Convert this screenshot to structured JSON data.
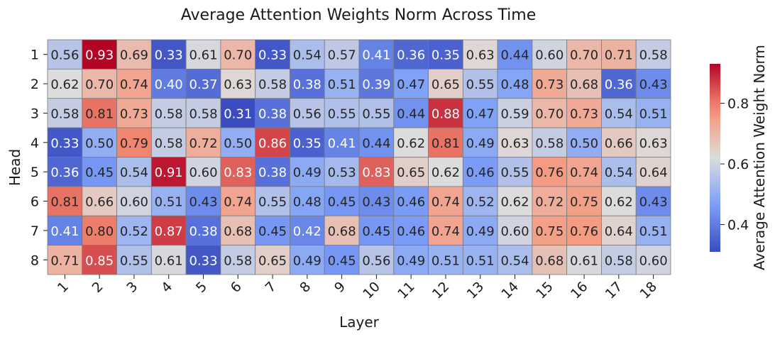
{
  "chart_data": {
    "type": "heatmap",
    "title": "Average Attention Weights Norm Across Time",
    "xlabel": "Layer",
    "ylabel": "Head",
    "x_categories": [
      "1",
      "2",
      "3",
      "4",
      "5",
      "6",
      "7",
      "8",
      "9",
      "10",
      "11",
      "12",
      "13",
      "14",
      "15",
      "16",
      "17",
      "18"
    ],
    "y_categories": [
      "1",
      "2",
      "3",
      "4",
      "5",
      "6",
      "7",
      "8"
    ],
    "values": [
      [
        0.56,
        0.93,
        0.69,
        0.33,
        0.61,
        0.7,
        0.33,
        0.54,
        0.57,
        0.41,
        0.36,
        0.35,
        0.63,
        0.44,
        0.6,
        0.7,
        0.71,
        0.58
      ],
      [
        0.62,
        0.7,
        0.74,
        0.4,
        0.37,
        0.63,
        0.58,
        0.38,
        0.51,
        0.39,
        0.47,
        0.65,
        0.55,
        0.48,
        0.73,
        0.68,
        0.36,
        0.43
      ],
      [
        0.58,
        0.81,
        0.73,
        0.58,
        0.58,
        0.31,
        0.38,
        0.56,
        0.55,
        0.55,
        0.44,
        0.88,
        0.47,
        0.59,
        0.7,
        0.73,
        0.54,
        0.51
      ],
      [
        0.33,
        0.5,
        0.79,
        0.58,
        0.72,
        0.5,
        0.86,
        0.35,
        0.41,
        0.44,
        0.62,
        0.81,
        0.49,
        0.63,
        0.58,
        0.5,
        0.66,
        0.63
      ],
      [
        0.36,
        0.45,
        0.54,
        0.91,
        0.6,
        0.83,
        0.38,
        0.49,
        0.53,
        0.83,
        0.65,
        0.62,
        0.46,
        0.55,
        0.76,
        0.74,
        0.54,
        0.64
      ],
      [
        0.81,
        0.66,
        0.6,
        0.51,
        0.43,
        0.74,
        0.55,
        0.48,
        0.45,
        0.43,
        0.46,
        0.74,
        0.52,
        0.62,
        0.72,
        0.75,
        0.62,
        0.43
      ],
      [
        0.41,
        0.8,
        0.52,
        0.87,
        0.38,
        0.68,
        0.45,
        0.42,
        0.68,
        0.45,
        0.46,
        0.74,
        0.49,
        0.6,
        0.75,
        0.76,
        0.64,
        0.51
      ],
      [
        0.71,
        0.85,
        0.55,
        0.61,
        0.33,
        0.58,
        0.65,
        0.49,
        0.45,
        0.56,
        0.49,
        0.51,
        0.51,
        0.54,
        0.68,
        0.61,
        0.58,
        0.6
      ]
    ],
    "colorbar": {
      "label": "Average Attention Weight Norm",
      "range": [
        0.31,
        0.93
      ],
      "ticks": [
        "0.4",
        "0.6",
        "0.8"
      ],
      "colormap": "coolwarm"
    },
    "grid": true,
    "cell_labels": true
  }
}
